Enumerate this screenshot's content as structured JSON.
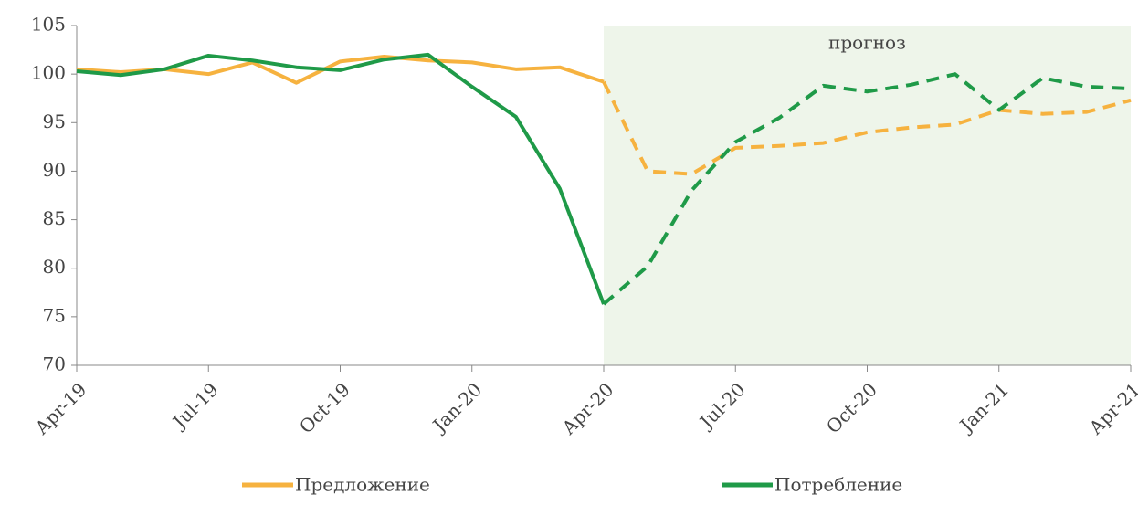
{
  "chart_data": {
    "type": "line",
    "categories": [
      "Apr-19",
      null,
      null,
      "Jul-19",
      null,
      null,
      "Oct-19",
      null,
      null,
      "Jan-20",
      null,
      null,
      "Apr-20",
      null,
      null,
      "Jul-20",
      null,
      null,
      "Oct-20",
      null,
      null,
      "Jan-21",
      null,
      null,
      "Apr-21"
    ],
    "series": [
      {
        "name": "Предложение",
        "color": "#f6b23f",
        "values": [
          100.5,
          100.2,
          100.5,
          100.0,
          101.2,
          99.1,
          101.3,
          101.8,
          101.4,
          101.2,
          100.5,
          100.7,
          99.2,
          90.0,
          89.7,
          92.4,
          92.6,
          92.9,
          94.0,
          94.5,
          94.8,
          96.3,
          95.9,
          96.1,
          97.3
        ]
      },
      {
        "name": "Потребление",
        "color": "#1f9a48",
        "values": [
          100.3,
          99.9,
          100.5,
          101.9,
          101.4,
          100.7,
          100.4,
          101.5,
          102.0,
          98.7,
          95.6,
          88.2,
          76.3,
          80.2,
          88.0,
          93.0,
          95.5,
          98.8,
          98.2,
          98.9,
          100.0,
          96.3,
          99.6,
          98.7,
          98.5
        ]
      }
    ],
    "ylim": [
      70,
      105
    ],
    "yticks": [
      70,
      75,
      80,
      85,
      90,
      95,
      100,
      105
    ],
    "forecast": {
      "label": "прогноз",
      "from": "Apr-20",
      "to": "Apr-21",
      "color": "#eef5ea"
    },
    "grid": false,
    "legend": "bottom"
  }
}
